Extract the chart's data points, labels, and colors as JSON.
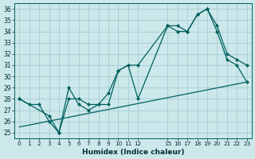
{
  "xlabel": "Humidex (Indice chaleur)",
  "bg_color": "#cce8ea",
  "grid_color": "#aad0d4",
  "line_color": "#005f5f",
  "xlim": [
    -0.5,
    23.5
  ],
  "ylim": [
    24.5,
    36.5
  ],
  "yticks": [
    25,
    26,
    27,
    28,
    29,
    30,
    31,
    32,
    33,
    34,
    35,
    36
  ],
  "xtick_vals": [
    0,
    1,
    2,
    3,
    4,
    5,
    6,
    7,
    8,
    9,
    10,
    11,
    12,
    15,
    16,
    17,
    18,
    19,
    20,
    21,
    22,
    23
  ],
  "xtick_labels": [
    "0",
    "1",
    "2",
    "3",
    "4",
    "5",
    "6",
    "7",
    "8",
    "9",
    "10",
    "11",
    "12",
    "15",
    "16",
    "17",
    "18",
    "19",
    "20",
    "21",
    "22",
    "23"
  ],
  "line1_x": [
    0,
    1,
    2,
    3,
    4,
    5,
    6,
    7,
    8,
    9,
    10,
    11,
    12,
    15,
    16,
    17,
    18,
    19,
    20,
    21,
    22,
    23
  ],
  "line1_y": [
    28,
    27.5,
    27.5,
    26,
    25,
    29,
    27.5,
    27,
    27.5,
    27.5,
    30.5,
    31,
    31,
    34.5,
    34,
    34,
    35.5,
    36,
    34,
    31.5,
    31,
    29.5
  ],
  "line2_x": [
    0,
    3,
    4,
    5,
    6,
    7,
    8,
    9,
    10,
    11,
    12,
    15,
    16,
    17,
    18,
    19,
    20,
    21,
    22,
    23
  ],
  "line2_y": [
    28,
    26.5,
    25,
    28,
    28,
    27.5,
    27.5,
    28.5,
    30.5,
    31,
    28,
    34.5,
    34.5,
    34,
    35.5,
    36,
    34.5,
    32,
    31.5,
    31
  ],
  "line3_x": [
    0,
    23
  ],
  "line3_y": [
    25.5,
    29.5
  ]
}
